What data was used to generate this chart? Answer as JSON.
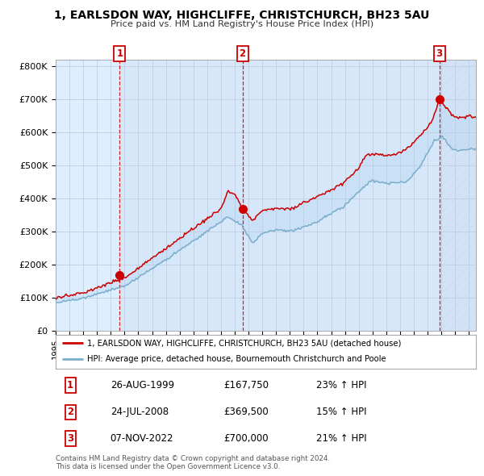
{
  "title": "1, EARLSDON WAY, HIGHCLIFFE, CHRISTCHURCH, BH23 5AU",
  "subtitle": "Price paid vs. HM Land Registry's House Price Index (HPI)",
  "ylim": [
    0,
    820000
  ],
  "xlim_start": 1995.0,
  "xlim_end": 2025.5,
  "sale_color": "#cc0000",
  "hpi_color": "#7aadcc",
  "background_color": "#ddeeff",
  "grid_color": "#c0cfe0",
  "sales": [
    {
      "year": 1999.65,
      "price": 167750,
      "label": "1"
    },
    {
      "year": 2008.56,
      "price": 369500,
      "label": "2"
    },
    {
      "year": 2022.85,
      "price": 700000,
      "label": "3"
    }
  ],
  "legend_sale": "1, EARLSDON WAY, HIGHCLIFFE, CHRISTCHURCH, BH23 5AU (detached house)",
  "legend_hpi": "HPI: Average price, detached house, Bournemouth Christchurch and Poole",
  "table_rows": [
    {
      "num": "1",
      "date": "26-AUG-1999",
      "price": "£167,750",
      "change": "23% ↑ HPI"
    },
    {
      "num": "2",
      "date": "24-JUL-2008",
      "price": "£369,500",
      "change": "15% ↑ HPI"
    },
    {
      "num": "3",
      "date": "07-NOV-2022",
      "price": "£700,000",
      "change": "21% ↑ HPI"
    }
  ],
  "footer": "Contains HM Land Registry data © Crown copyright and database right 2024.\nThis data is licensed under the Open Government Licence v3.0.",
  "ytick_labels": [
    "£0",
    "£100K",
    "£200K",
    "£300K",
    "£400K",
    "£500K",
    "£600K",
    "£700K",
    "£800K"
  ],
  "ytick_values": [
    0,
    100000,
    200000,
    300000,
    400000,
    500000,
    600000,
    700000,
    800000
  ]
}
